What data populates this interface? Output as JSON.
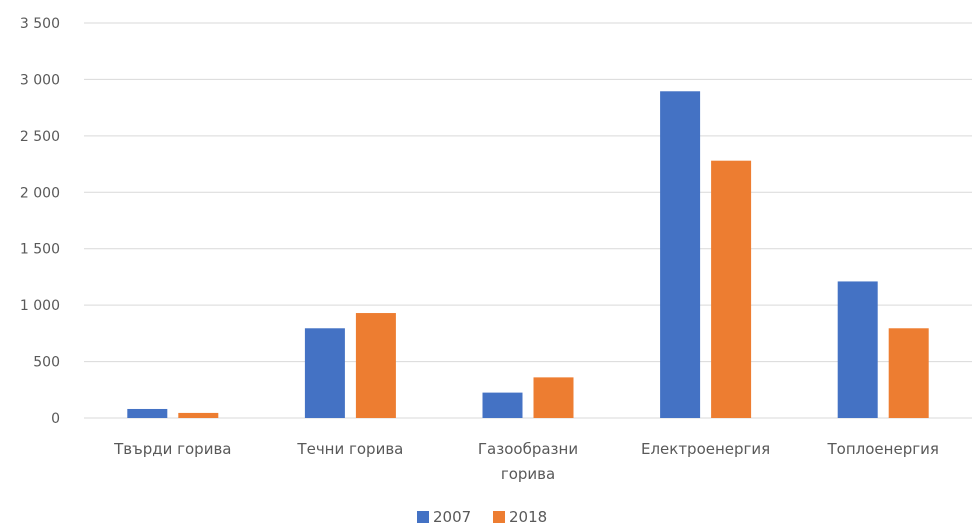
{
  "chart_data": {
    "type": "bar",
    "categories": [
      [
        "Твърди горива"
      ],
      [
        "Течни горива"
      ],
      [
        "Газообразни",
        "горива"
      ],
      [
        "Електроенергия"
      ],
      [
        "Топлоенергия"
      ]
    ],
    "series": [
      {
        "name": "2007",
        "color": "#4472C4",
        "values": [
          80,
          795,
          225,
          2895,
          1210
        ]
      },
      {
        "name": "2018",
        "color": "#ED7D31",
        "values": [
          45,
          930,
          360,
          2280,
          795
        ]
      }
    ],
    "y_ticks": [
      "0",
      "500",
      "1 000",
      "1 500",
      "2 000",
      "2 500",
      "3 000",
      "3 500"
    ],
    "ylim": [
      0,
      3500
    ],
    "title": "",
    "xlabel": "",
    "ylabel": "",
    "grid": true,
    "legend_position": "bottom-center",
    "gridline_color": "#D9D9D9"
  }
}
